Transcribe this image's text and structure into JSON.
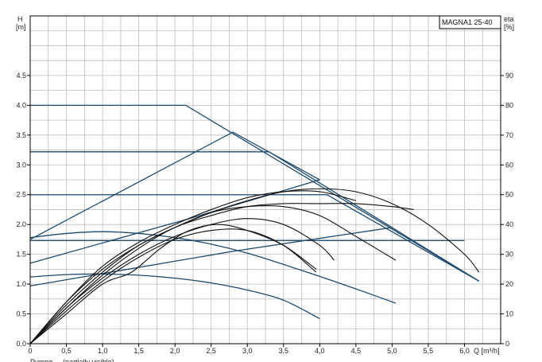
{
  "chart_data": {
    "type": "line",
    "title": "MAGNA1 25-40",
    "y_left_label": "H",
    "y_left_unit": "[m]",
    "y_right_label": "eta",
    "y_right_unit": "[%]",
    "x_unit": "Q [m³/h]",
    "footer_text": "Pumpe ... (partially visible)",
    "xlim": [
      0,
      6.5
    ],
    "ylim_left": [
      0,
      5.5
    ],
    "ylim_right": [
      0,
      110
    ],
    "x_ticks": [
      "0",
      "0,5",
      "1,0",
      "1,5",
      "2,0",
      "2,5",
      "3,0",
      "3,5",
      "4,0",
      "4,5",
      "5,0",
      "5,5",
      "6,0"
    ],
    "y_left_ticks": [
      "0.0",
      "0.5",
      "1.0",
      "1.5",
      "2.0",
      "2.5",
      "3.0",
      "3.5",
      "4.0",
      "4.5"
    ],
    "y_right_ticks": [
      "0",
      "10",
      "20",
      "30",
      "40",
      "50",
      "60",
      "70",
      "80",
      "90"
    ],
    "grid": true,
    "colors": {
      "head": "#1e4a6e",
      "efficiency": "#111111",
      "grid": "#bdbdbd"
    },
    "series": [
      {
        "kind": "head",
        "points": [
          [
            0,
            4.0
          ],
          [
            2.15,
            4.0
          ],
          [
            6.2,
            1.05
          ]
        ]
      },
      {
        "kind": "head",
        "points": [
          [
            0,
            3.22
          ],
          [
            3.3,
            3.22
          ],
          [
            6.2,
            1.05
          ]
        ]
      },
      {
        "kind": "head",
        "points": [
          [
            0,
            2.5
          ],
          [
            4.1,
            2.5
          ],
          [
            6.2,
            1.05
          ]
        ]
      },
      {
        "kind": "head",
        "points": [
          [
            0,
            1.73
          ],
          [
            6.0,
            1.73
          ]
        ]
      },
      {
        "kind": "head",
        "points": [
          [
            0,
            1.75
          ],
          [
            2.8,
            3.55
          ],
          [
            4.0,
            2.75
          ]
        ]
      },
      {
        "kind": "head",
        "points": [
          [
            0,
            1.35
          ],
          [
            2.2,
            2.1
          ],
          [
            4.0,
            2.75
          ]
        ]
      },
      {
        "kind": "head",
        "points": [
          [
            0,
            0.97
          ],
          [
            2.8,
            1.55
          ],
          [
            5.0,
            1.95
          ]
        ]
      },
      {
        "kind": "head",
        "points": [
          [
            0,
            1.78
          ],
          [
            0.5,
            1.85
          ],
          [
            1.0,
            1.88
          ],
          [
            1.5,
            1.85
          ],
          [
            2.0,
            1.78
          ],
          [
            2.5,
            1.67
          ],
          [
            3.0,
            1.52
          ],
          [
            3.5,
            1.33
          ],
          [
            4.0,
            1.13
          ],
          [
            4.5,
            0.92
          ],
          [
            5.05,
            0.68
          ]
        ]
      },
      {
        "kind": "head",
        "points": [
          [
            0,
            1.12
          ],
          [
            0.5,
            1.16
          ],
          [
            1.0,
            1.17
          ],
          [
            1.5,
            1.15
          ],
          [
            2.0,
            1.1
          ],
          [
            2.5,
            1.02
          ],
          [
            3.0,
            0.9
          ],
          [
            3.5,
            0.73
          ],
          [
            4.0,
            0.42
          ]
        ]
      },
      {
        "kind": "efficiency",
        "points": [
          [
            0,
            0
          ],
          [
            0.5,
            14
          ],
          [
            1.0,
            25
          ],
          [
            1.5,
            33
          ],
          [
            2.0,
            39
          ],
          [
            2.5,
            44
          ],
          [
            3.0,
            48
          ],
          [
            3.5,
            51
          ],
          [
            4.0,
            52
          ],
          [
            4.5,
            51
          ],
          [
            5.0,
            47
          ],
          [
            5.5,
            40
          ],
          [
            6.0,
            30
          ],
          [
            6.2,
            24
          ]
        ]
      },
      {
        "kind": "efficiency",
        "points": [
          [
            0,
            0
          ],
          [
            0.5,
            12
          ],
          [
            1.0,
            23
          ],
          [
            1.5,
            32
          ],
          [
            2.0,
            39
          ],
          [
            2.5,
            43
          ],
          [
            3.0,
            46
          ],
          [
            3.5,
            47
          ],
          [
            4.0,
            47
          ],
          [
            4.5,
            47
          ],
          [
            5.0,
            46
          ],
          [
            5.3,
            45
          ]
        ]
      },
      {
        "kind": "efficiency",
        "points": [
          [
            0,
            0
          ],
          [
            0.5,
            14
          ],
          [
            1.0,
            26
          ],
          [
            1.5,
            34
          ],
          [
            2.0,
            40
          ],
          [
            2.5,
            45
          ],
          [
            3.0,
            49
          ],
          [
            3.5,
            51
          ],
          [
            4.0,
            51
          ],
          [
            4.5,
            48
          ]
        ]
      },
      {
        "kind": "efficiency",
        "points": [
          [
            0,
            0
          ],
          [
            0.5,
            13
          ],
          [
            1.0,
            24
          ],
          [
            1.5,
            33
          ],
          [
            2.0,
            39
          ],
          [
            2.5,
            44
          ],
          [
            3.0,
            46
          ],
          [
            3.5,
            46
          ],
          [
            4.0,
            43
          ],
          [
            4.5,
            36
          ],
          [
            5.05,
            28
          ]
        ]
      },
      {
        "kind": "efficiency",
        "points": [
          [
            0,
            0
          ],
          [
            0.5,
            12
          ],
          [
            1.0,
            22
          ],
          [
            1.5,
            30
          ],
          [
            2.0,
            36
          ],
          [
            2.5,
            40
          ],
          [
            3.0,
            42
          ],
          [
            3.5,
            40
          ],
          [
            4.0,
            33
          ],
          [
            4.2,
            28
          ]
        ]
      },
      {
        "kind": "efficiency",
        "points": [
          [
            0,
            0
          ],
          [
            0.5,
            11
          ],
          [
            1.0,
            21
          ],
          [
            1.5,
            29
          ],
          [
            2.0,
            35
          ],
          [
            2.5,
            38
          ],
          [
            3.0,
            38
          ],
          [
            3.5,
            33
          ],
          [
            3.95,
            24
          ]
        ]
      },
      {
        "kind": "efficiency",
        "points": [
          [
            0,
            0
          ],
          [
            0.5,
            10
          ],
          [
            1.0,
            20
          ],
          [
            1.4,
            24
          ],
          [
            1.8,
            32
          ],
          [
            2.2,
            38
          ],
          [
            2.6,
            40
          ],
          [
            3.0,
            38
          ],
          [
            3.5,
            33
          ],
          [
            3.95,
            25
          ]
        ]
      }
    ]
  }
}
